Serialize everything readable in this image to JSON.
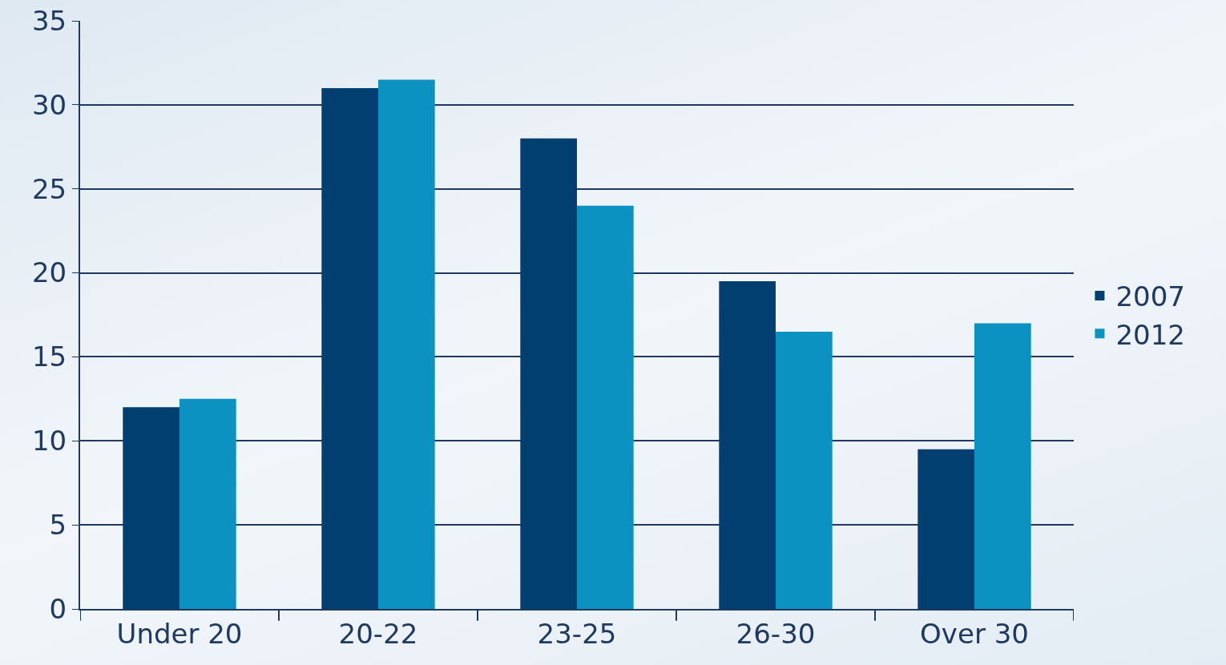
{
  "chart_data": {
    "type": "bar",
    "categories": [
      "Under 20",
      "20-22",
      "23-25",
      "26-30",
      "Over 30"
    ],
    "series": [
      {
        "name": "2007",
        "color": "#003f6f",
        "values": [
          12,
          31,
          28,
          19.5,
          9.5
        ]
      },
      {
        "name": "2012",
        "color": "#0b92c0",
        "values": [
          12.5,
          31.5,
          24,
          16.5,
          17
        ]
      }
    ],
    "ylim": [
      0,
      35
    ],
    "yticks": [
      0,
      5,
      10,
      15,
      20,
      25,
      30,
      35
    ],
    "grid": "y",
    "legend": "right"
  }
}
